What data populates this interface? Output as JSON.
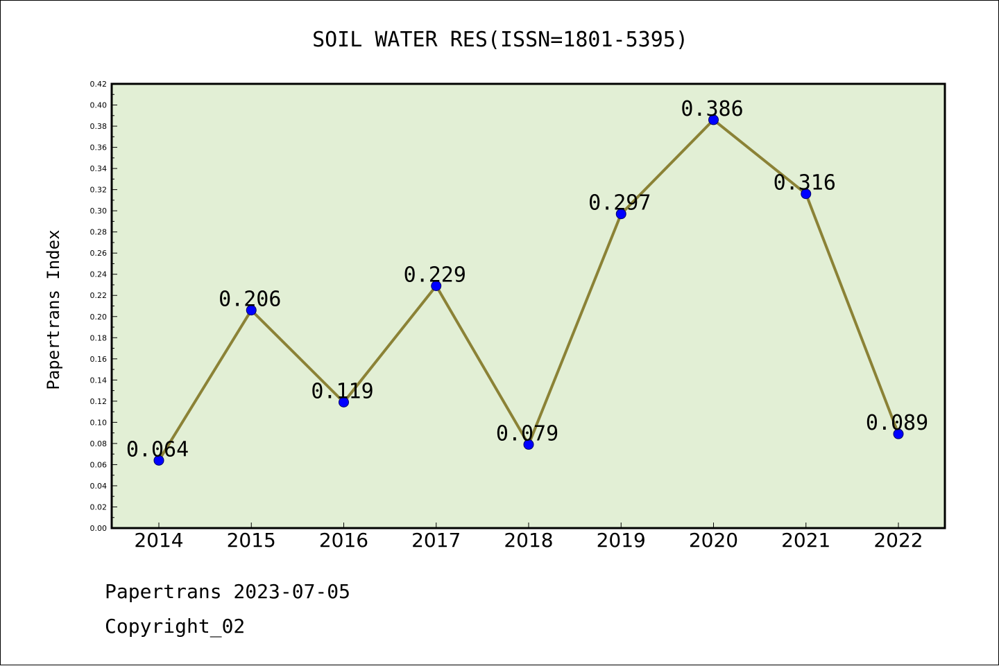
{
  "chart_data": {
    "type": "line",
    "title": "SOIL WATER RES(ISSN=1801-5395)",
    "ylabel": "Papertrans Index",
    "xlabel": "",
    "categories": [
      "2014",
      "2015",
      "2016",
      "2017",
      "2018",
      "2019",
      "2020",
      "2021",
      "2022"
    ],
    "series": [
      {
        "values": [
          0.064,
          0.206,
          0.119,
          0.229,
          0.079,
          0.297,
          0.386,
          0.316,
          0.089
        ],
        "data_labels": [
          "0.064",
          "0.206",
          "0.119",
          "0.229",
          "0.079",
          "0.297",
          "0.386",
          "0.316",
          "0.089"
        ]
      }
    ],
    "ylim": [
      0,
      0.42
    ],
    "ytick_step": 0.02,
    "ytick_labels": [
      "0.00",
      "0.02",
      "0.04",
      "0.06",
      "0.08",
      "0.10",
      "0.12",
      "0.14",
      "0.16",
      "0.18",
      "0.20",
      "0.22",
      "0.24",
      "0.26",
      "0.28",
      "0.30",
      "0.32",
      "0.34",
      "0.36",
      "0.38",
      "0.40",
      "0.42"
    ],
    "grid": false,
    "legend": "none",
    "colors": {
      "plot_background": "#e2efd5",
      "line": "#8b8236",
      "marker": "#0000ff",
      "axis": "#000000"
    }
  },
  "footer": {
    "line1": "Papertrans 2023-07-05",
    "line2": "Copyright_02"
  }
}
